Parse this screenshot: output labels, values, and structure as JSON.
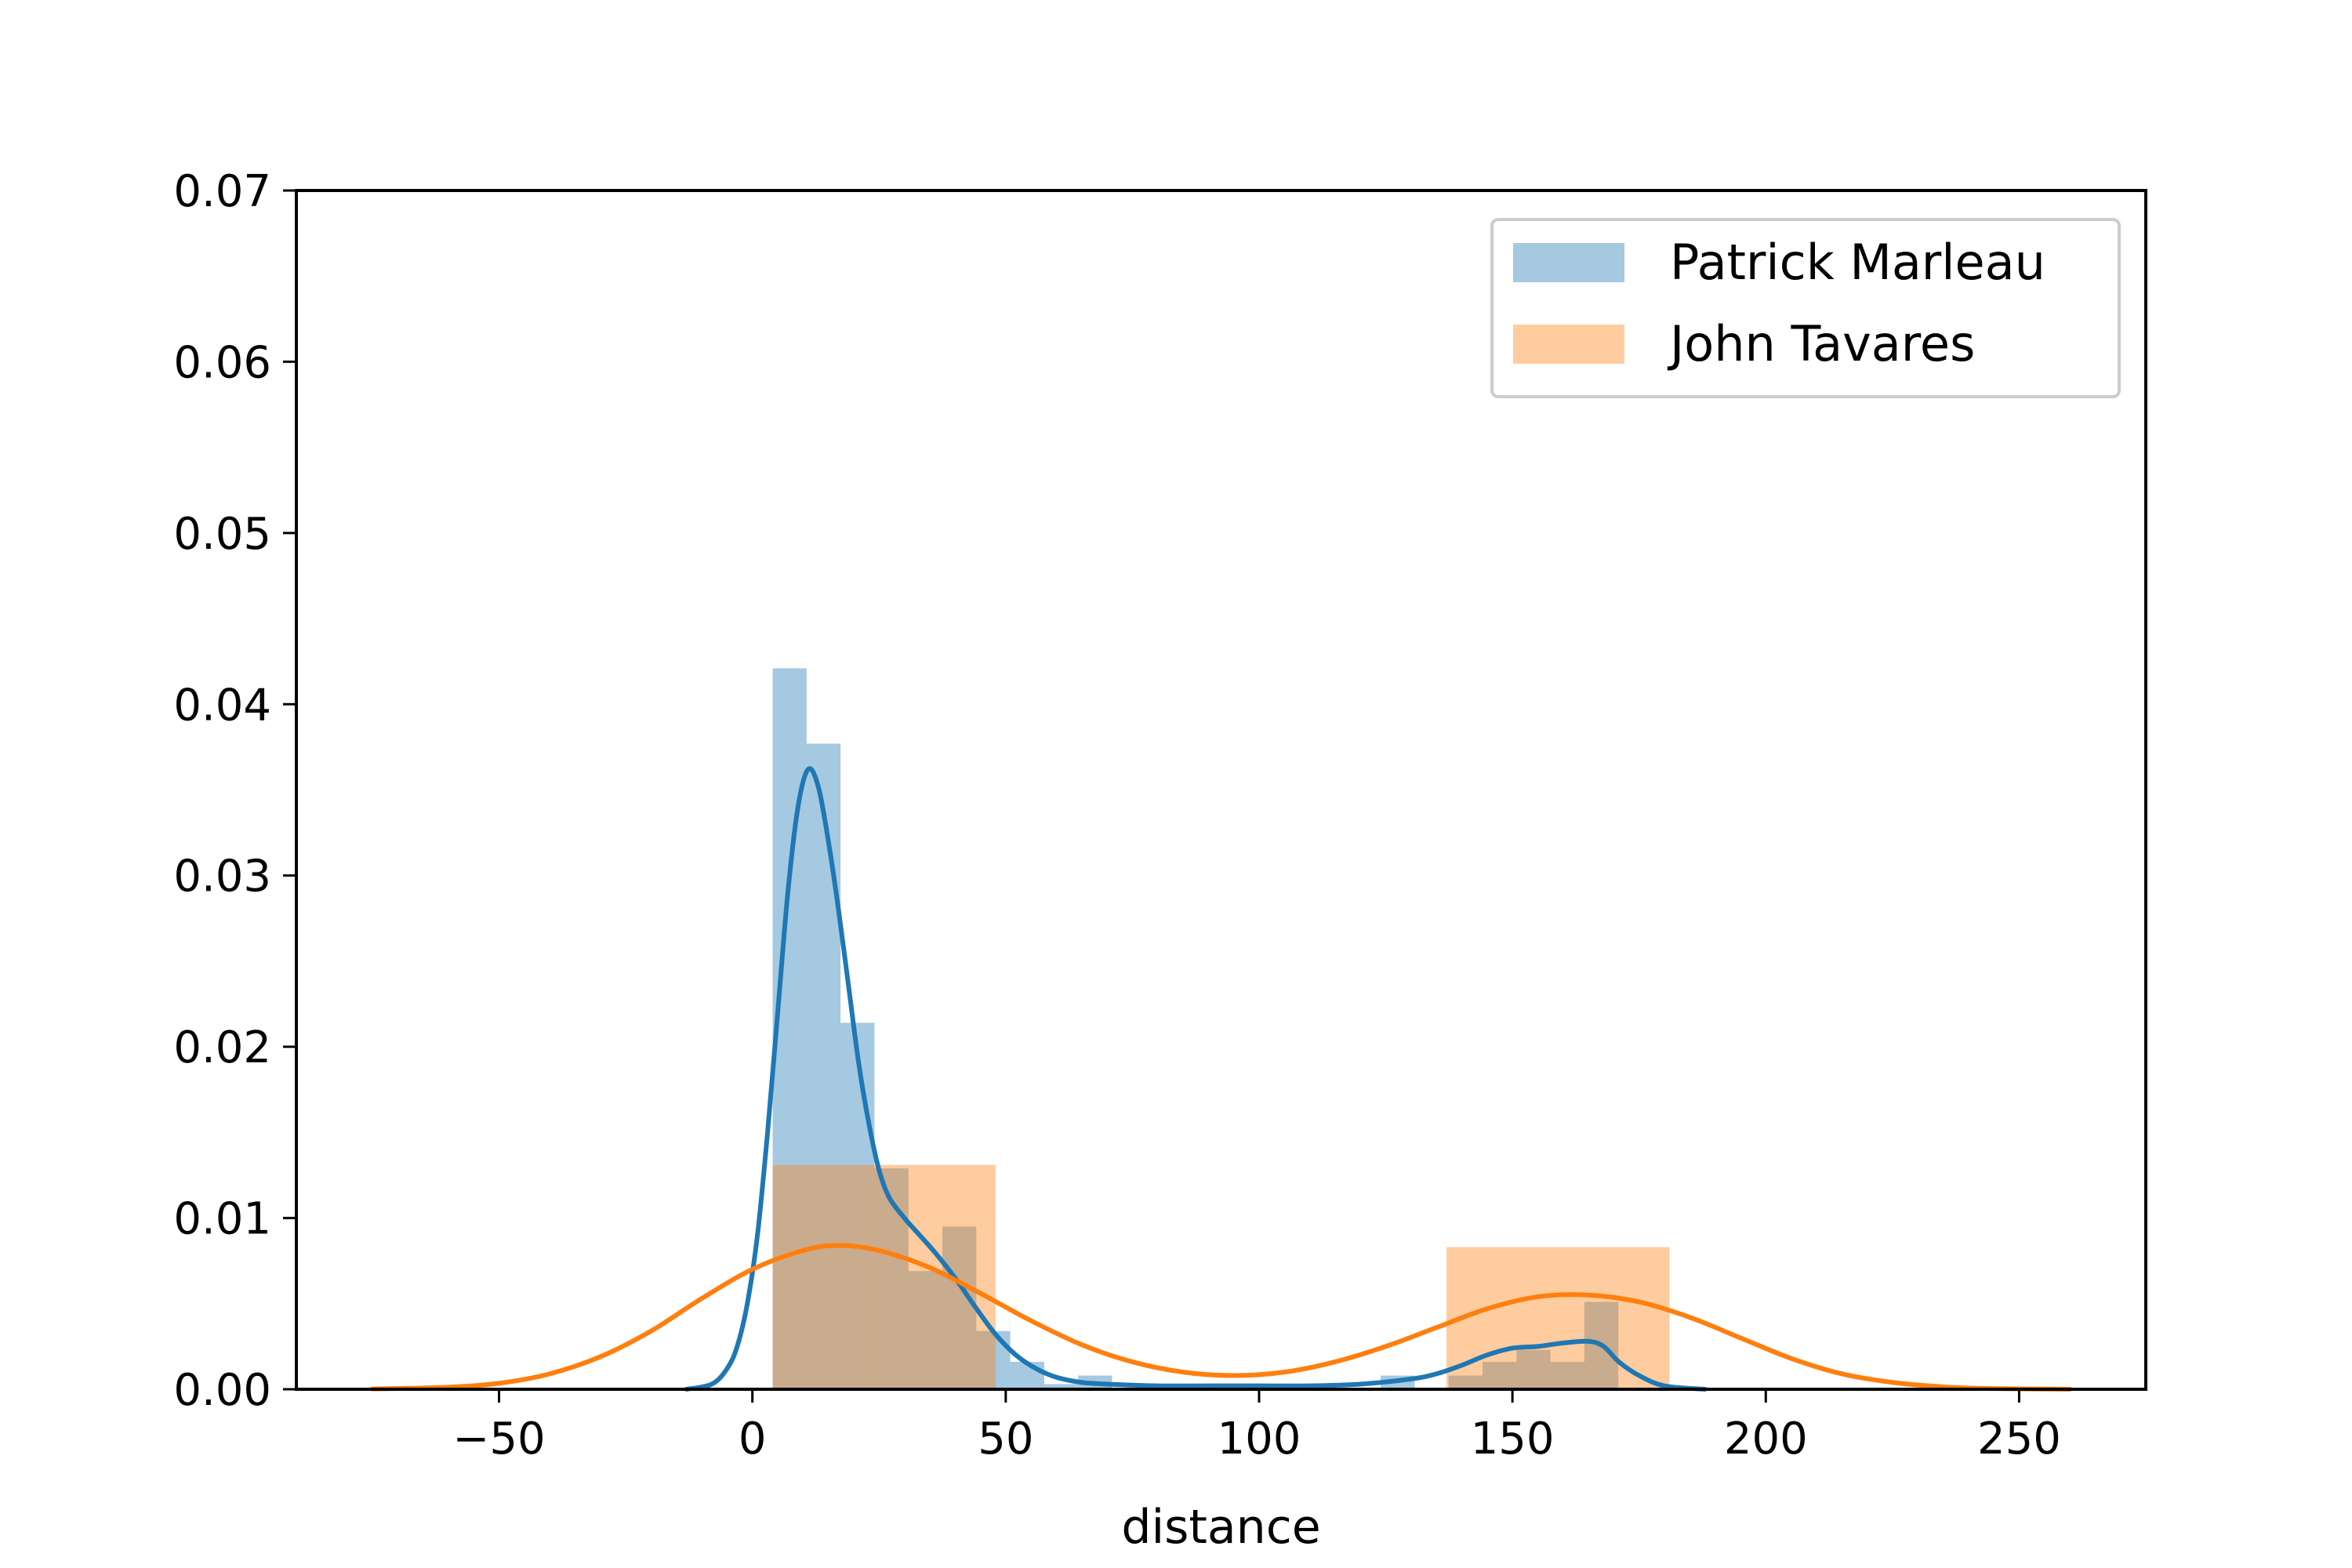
{
  "chart_data": {
    "type": "histogram",
    "title": "",
    "xlabel": "distance",
    "ylabel": "",
    "xlim": [
      -90,
      275
    ],
    "ylim": [
      0,
      0.07
    ],
    "xticks": [
      -50,
      0,
      50,
      100,
      150,
      200,
      250
    ],
    "xtick_labels": [
      "−50",
      "0",
      "50",
      "100",
      "150",
      "200",
      "250"
    ],
    "yticks": [
      0,
      0.01,
      0.02,
      0.03,
      0.04,
      0.05,
      0.06,
      0.07
    ],
    "ytick_labels": [
      "0.00",
      "0.01",
      "0.02",
      "0.03",
      "0.04",
      "0.05",
      "0.06",
      "0.07"
    ],
    "grid": false,
    "legend_position": "upper right",
    "series": [
      {
        "name": "Patrick Marleau",
        "color": "#1f77b4",
        "bar_opacity": 0.4,
        "bins": [
          {
            "x0": 4.0,
            "x1": 10.7,
            "density": 0.0421
          },
          {
            "x0": 10.7,
            "x1": 17.4,
            "density": 0.0377
          },
          {
            "x0": 17.4,
            "x1": 24.1,
            "density": 0.0214
          },
          {
            "x0": 24.1,
            "x1": 30.8,
            "density": 0.0129
          },
          {
            "x0": 30.8,
            "x1": 37.5,
            "density": 0.0069
          },
          {
            "x0": 37.5,
            "x1": 44.2,
            "density": 0.0095
          },
          {
            "x0": 44.2,
            "x1": 50.9,
            "density": 0.0034
          },
          {
            "x0": 50.9,
            "x1": 57.6,
            "density": 0.0016
          },
          {
            "x0": 57.6,
            "x1": 64.3,
            "density": 0.0003
          },
          {
            "x0": 64.3,
            "x1": 71.0,
            "density": 0.0008
          },
          {
            "x0": 124.0,
            "x1": 130.7,
            "density": 0.0008
          },
          {
            "x0": 137.4,
            "x1": 144.1,
            "density": 0.0008
          },
          {
            "x0": 144.1,
            "x1": 150.8,
            "density": 0.0016
          },
          {
            "x0": 150.8,
            "x1": 157.5,
            "density": 0.0023
          },
          {
            "x0": 157.5,
            "x1": 164.2,
            "density": 0.0016
          },
          {
            "x0": 164.2,
            "x1": 170.9,
            "density": 0.0051
          }
        ],
        "kde": {
          "x": [
            -13,
            -8,
            -5,
            -3,
            -1,
            1,
            3,
            5,
            7,
            9,
            11,
            13,
            15,
            17,
            19,
            21,
            23,
            25,
            27,
            30,
            33,
            36,
            40,
            44,
            48,
            52,
            56,
            60,
            65,
            70,
            80,
            90,
            100,
            110,
            120,
            130,
            135,
            140,
            145,
            150,
            155,
            160,
            165,
            168,
            171,
            175,
            180,
            188
          ],
          "y": [
            0.0,
            0.0003,
            0.0012,
            0.0025,
            0.005,
            0.009,
            0.015,
            0.022,
            0.029,
            0.034,
            0.0362,
            0.0352,
            0.032,
            0.028,
            0.0235,
            0.019,
            0.0155,
            0.0128,
            0.0112,
            0.01,
            0.009,
            0.008,
            0.0065,
            0.0048,
            0.0032,
            0.002,
            0.0012,
            0.0007,
            0.0004,
            0.0003,
            0.0002,
            0.0002,
            0.0002,
            0.0002,
            0.0003,
            0.0006,
            0.0009,
            0.0014,
            0.002,
            0.0024,
            0.0025,
            0.0027,
            0.0028,
            0.0025,
            0.0016,
            0.0008,
            0.0002,
            0.0
          ]
        }
      },
      {
        "name": "John Tavares",
        "color": "#ff7f0e",
        "bar_opacity": 0.4,
        "bins": [
          {
            "x0": 4.0,
            "x1": 48.0,
            "density": 0.0131
          },
          {
            "x0": 48.0,
            "x1": 92.5,
            "density": 0.0
          },
          {
            "x0": 92.5,
            "x1": 137.0,
            "density": 0.0
          },
          {
            "x0": 137.0,
            "x1": 181.0,
            "density": 0.0083
          }
        ],
        "kde": {
          "x": [
            -75,
            -60,
            -50,
            -40,
            -30,
            -20,
            -10,
            0,
            10,
            17,
            25,
            35,
            45,
            55,
            65,
            75,
            85,
            95,
            105,
            115,
            125,
            135,
            145,
            155,
            165,
            175,
            185,
            195,
            205,
            215,
            225,
            235,
            245,
            260
          ],
          "y": [
            2e-05,
            0.00012,
            0.00035,
            0.0009,
            0.0019,
            0.0034,
            0.0053,
            0.007,
            0.0081,
            0.0084,
            0.0081,
            0.0071,
            0.0056,
            0.004,
            0.0026,
            0.0016,
            0.001,
            0.0008,
            0.001,
            0.0016,
            0.0025,
            0.0036,
            0.0047,
            0.0054,
            0.0055,
            0.0051,
            0.0042,
            0.003,
            0.0018,
            0.0009,
            0.0004,
            0.00014,
            4e-05,
            0.0
          ]
        }
      }
    ]
  }
}
